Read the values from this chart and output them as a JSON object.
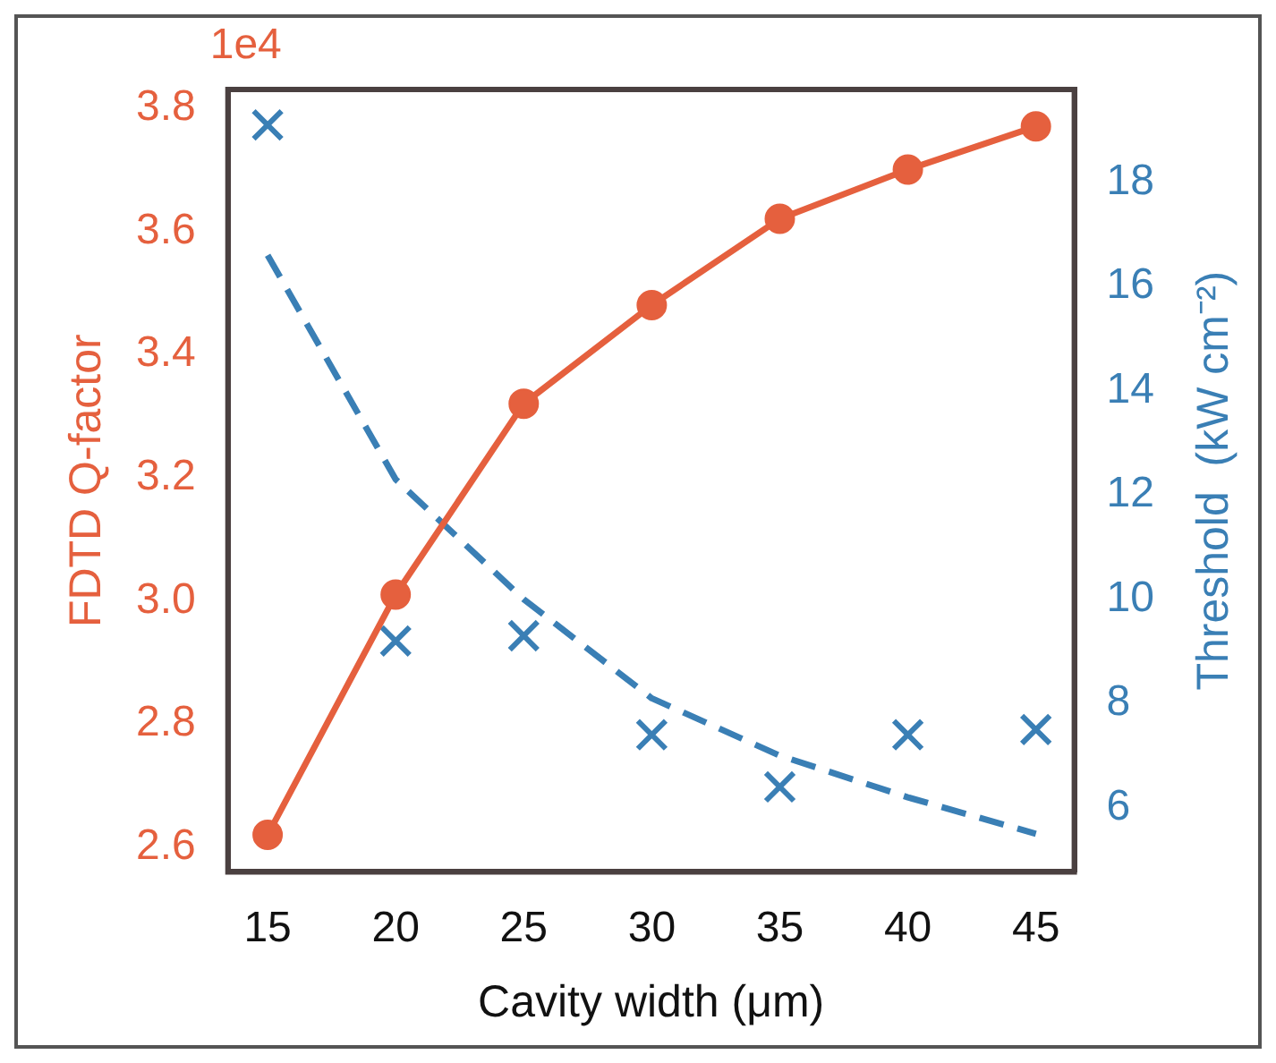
{
  "chart_data": {
    "type": "line",
    "xlabel": "Cavity width (μm)",
    "ylabel": "FDTD Q-factor",
    "y2label": "Threshold  (kW cm⁻²)",
    "annotations": [
      "1e4"
    ],
    "x": [
      15,
      20,
      25,
      30,
      35,
      40,
      45
    ],
    "xlim": [
      13.45,
      46.5
    ],
    "xticks": [
      15,
      20,
      25,
      30,
      35,
      40,
      45
    ],
    "ylim": [
      2.56,
      3.83
    ],
    "yticks": [
      2.6,
      2.8,
      {
        "value": 3,
        "label": "3.0"
      },
      3.2,
      3.4,
      3.6,
      3.8
    ],
    "y2lim": [
      4.77,
      19.78
    ],
    "y2ticks": [
      6,
      8,
      10,
      12,
      14,
      16,
      18
    ],
    "grid": false,
    "legend": false,
    "series": [
      {
        "color": "#e5603e",
        "marker": "circle",
        "line_style": "solid",
        "axis": "y",
        "values": [
          2.62,
          3.01,
          3.32,
          3.48,
          3.62,
          3.7,
          3.77
        ]
      },
      {
        "type": "scatter",
        "color": "#3a7fb5",
        "marker": "cross",
        "axis": "y2",
        "values": [
          19.1,
          9.2,
          9.3,
          7.4,
          6.4,
          7.4,
          7.5
        ]
      },
      {
        "color": "#3a7fb5",
        "marker": "none",
        "line_style": "dashed",
        "axis": "y2",
        "values": [
          16.6,
          12.3,
          10.0,
          8.1,
          7.0,
          6.2,
          5.5
        ]
      }
    ]
  }
}
